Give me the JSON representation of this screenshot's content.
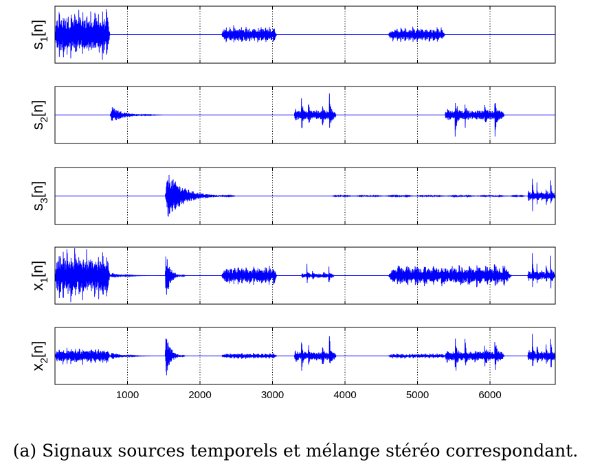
{
  "chart_data": {
    "type": "line",
    "xlim": [
      0,
      6900
    ],
    "xticks": [
      1000,
      2000,
      3000,
      4000,
      5000,
      6000
    ],
    "xtick_labels": [
      "1000",
      "2000",
      "3000",
      "4000",
      "5000",
      "6000"
    ],
    "grid": "vertical-dotted",
    "line_color": "#0000ff",
    "panels": [
      {
        "name": "s1",
        "ylabel": {
          "base": "s",
          "sub": "1",
          "suffix": "[n]"
        },
        "bursts": [
          {
            "start": 0,
            "end": 760,
            "amp": 1.0,
            "kind": "dense"
          },
          {
            "start": 2300,
            "end": 3060,
            "amp": 0.35,
            "kind": "dense"
          },
          {
            "start": 4600,
            "end": 5380,
            "amp": 0.3,
            "kind": "dense"
          }
        ]
      },
      {
        "name": "s2",
        "ylabel": {
          "base": "s",
          "sub": "2",
          "suffix": "[n]"
        },
        "bursts": [
          {
            "start": 760,
            "end": 1500,
            "amp": 0.35,
            "kind": "decay"
          },
          {
            "start": 3300,
            "end": 3880,
            "amp": 1.0,
            "kind": "spiky"
          },
          {
            "start": 5380,
            "end": 6200,
            "amp": 1.0,
            "kind": "spiky"
          }
        ]
      },
      {
        "name": "s3",
        "ylabel": {
          "base": "s",
          "sub": "3",
          "suffix": "[n]"
        },
        "bursts": [
          {
            "start": 1520,
            "end": 2500,
            "amp": 1.0,
            "kind": "decay"
          },
          {
            "start": 3800,
            "end": 6500,
            "amp": 0.03,
            "kind": "low"
          },
          {
            "start": 6520,
            "end": 6900,
            "amp": 0.8,
            "kind": "spiky"
          }
        ]
      },
      {
        "name": "x1",
        "ylabel": {
          "base": "x",
          "sub": "1",
          "suffix": "[n]"
        },
        "bursts": [
          {
            "start": 0,
            "end": 760,
            "amp": 1.0,
            "kind": "dense"
          },
          {
            "start": 760,
            "end": 1400,
            "amp": 0.12,
            "kind": "decay"
          },
          {
            "start": 1520,
            "end": 1800,
            "amp": 1.0,
            "kind": "decay"
          },
          {
            "start": 2300,
            "end": 3060,
            "amp": 0.4,
            "kind": "dense"
          },
          {
            "start": 3400,
            "end": 3850,
            "amp": 0.45,
            "kind": "spiky"
          },
          {
            "start": 4600,
            "end": 6300,
            "amp": 0.45,
            "kind": "dense"
          },
          {
            "start": 6520,
            "end": 6900,
            "amp": 0.9,
            "kind": "spiky"
          }
        ]
      },
      {
        "name": "x2",
        "ylabel": {
          "base": "x",
          "sub": "2",
          "suffix": "[n]"
        },
        "bursts": [
          {
            "start": 0,
            "end": 760,
            "amp": 0.35,
            "kind": "dense"
          },
          {
            "start": 760,
            "end": 1400,
            "amp": 0.15,
            "kind": "decay"
          },
          {
            "start": 1520,
            "end": 1800,
            "amp": 1.0,
            "kind": "decay"
          },
          {
            "start": 2300,
            "end": 3060,
            "amp": 0.12,
            "kind": "dense"
          },
          {
            "start": 3300,
            "end": 3880,
            "amp": 0.9,
            "kind": "spiky"
          },
          {
            "start": 4600,
            "end": 5380,
            "amp": 0.1,
            "kind": "dense"
          },
          {
            "start": 5380,
            "end": 6200,
            "amp": 1.0,
            "kind": "spiky"
          },
          {
            "start": 6520,
            "end": 6900,
            "amp": 0.95,
            "kind": "spiky"
          }
        ]
      }
    ]
  },
  "caption": "(a) Signaux sources temporels et mélange stéréo correspondant."
}
